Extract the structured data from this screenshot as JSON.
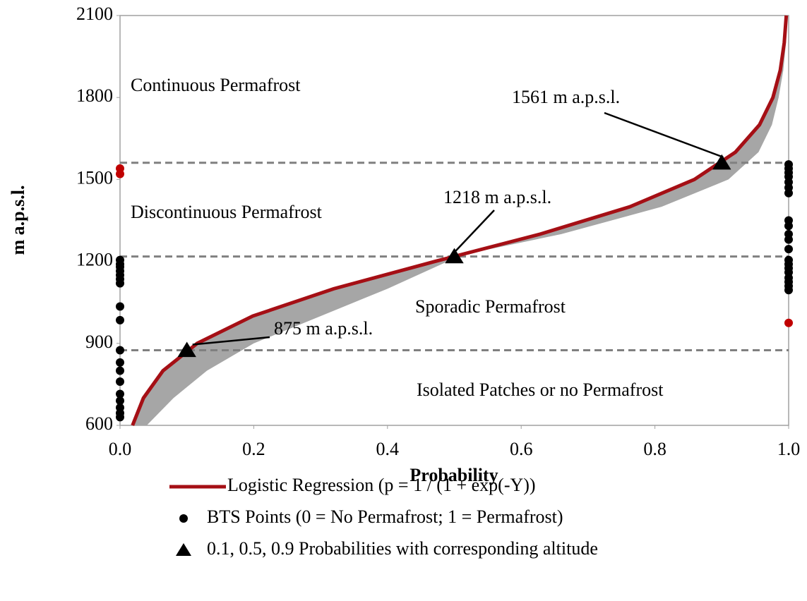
{
  "chart_data": {
    "type": "line",
    "xlabel": "Probability",
    "ylabel": "m a.p.s.l.",
    "xlim": [
      0,
      1
    ],
    "ylim": [
      600,
      2100
    ],
    "xticks": [
      {
        "value": 0,
        "label": "0.0"
      },
      0.2,
      0.4,
      0.6,
      0.8,
      {
        "value": 1,
        "label": "1.0"
      }
    ],
    "yticks": [
      600,
      900,
      1200,
      1500,
      1800,
      2100
    ],
    "band": {
      "color": "#a6a6a6",
      "y": [
        600,
        700,
        800,
        900,
        1000,
        1100,
        1200,
        1218,
        1300,
        1400,
        1500,
        1600,
        1700,
        1800,
        1900,
        2000,
        2100
      ],
      "x_low": [
        0.0187,
        0.035,
        0.0643,
        0.1154,
        0.1985,
        0.3196,
        0.4712,
        0.5,
        0.6284,
        0.7624,
        0.859,
        0.9204,
        0.9564,
        0.9765,
        0.9875,
        0.9934,
        0.9965
      ],
      "x_high": [
        0.04,
        0.08,
        0.13,
        0.2,
        0.3,
        0.4,
        0.49,
        0.5,
        0.66,
        0.81,
        0.91,
        0.955,
        0.975,
        0.985,
        0.992,
        0.996,
        0.998
      ]
    },
    "series": [
      {
        "name": "Logistic Regression (p = 1 / (1 + exp(-Y))",
        "type": "line",
        "color": "#a50f15",
        "x": [
          0.0187,
          0.035,
          0.0643,
          0.1154,
          0.1985,
          0.3196,
          0.4712,
          0.6284,
          0.7624,
          0.859,
          0.9204,
          0.9564,
          0.9765,
          0.9875,
          0.9934,
          0.9965
        ],
        "y": [
          600,
          700,
          800,
          900,
          1000,
          1100,
          1200,
          1300,
          1400,
          1500,
          1600,
          1700,
          1800,
          1900,
          2000,
          2100
        ]
      },
      {
        "name": "BTS Points (0 = No Permafrost; 1 = Permafrost)",
        "type": "scatter",
        "color": "#000000",
        "x": [
          0,
          0,
          0,
          0,
          0,
          0,
          0,
          0,
          0,
          0,
          0,
          0,
          0,
          0,
          0,
          0,
          0,
          0,
          1,
          1,
          1,
          1,
          1,
          1,
          1,
          1,
          1,
          1,
          1,
          1,
          1,
          1,
          1,
          1,
          1,
          1,
          1,
          1
        ],
        "y": [
          1205,
          1190,
          1180,
          1165,
          1150,
          1135,
          1120,
          1035,
          985,
          875,
          830,
          800,
          760,
          715,
          690,
          665,
          645,
          630,
          1555,
          1540,
          1525,
          1510,
          1490,
          1470,
          1450,
          1350,
          1330,
          1300,
          1280,
          1245,
          1205,
          1190,
          1175,
          1160,
          1140,
          1125,
          1110,
          1095
        ]
      },
      {
        "type": "scatter",
        "color": "#c00000",
        "x": [
          0,
          0,
          1
        ],
        "y": [
          1540,
          1520,
          975
        ]
      },
      {
        "name": "0.1, 0.5, 0.9 Probabilities with corresponding altitude",
        "type": "triangle",
        "color": "#000000",
        "x": [
          0.1,
          0.5,
          0.9
        ],
        "y": [
          875,
          1218,
          1561
        ]
      }
    ],
    "guide_color": "#808080",
    "zones": [
      "Continuous Permafrost",
      "Discontinuous Permafrost",
      "Sporadic Permafrost",
      "Isolated Patches or no Permafrost"
    ],
    "annotations": [
      "875 m a.p.s.l.",
      "1218 m a.p.s.l.",
      "1561 m a.p.s.l."
    ]
  }
}
